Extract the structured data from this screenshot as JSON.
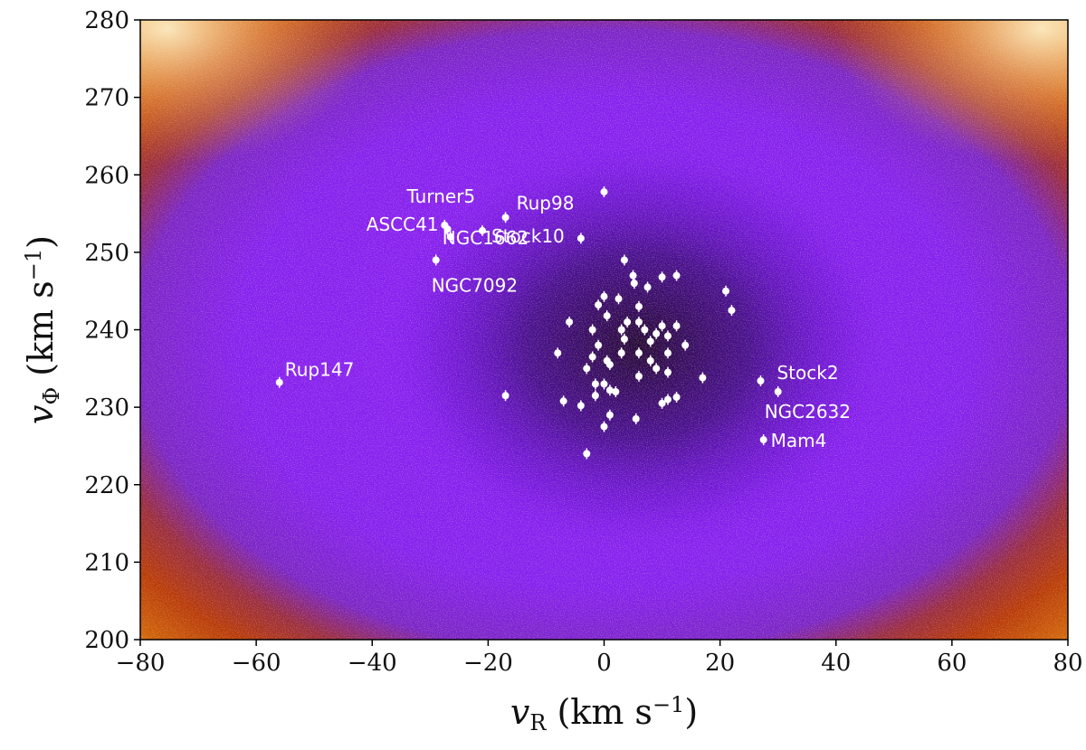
{
  "chart_data": {
    "type": "scatter",
    "xlabel": "v_R (km s^-1)",
    "ylabel": "v_Φ (km s^-1)",
    "xlim": [
      -80,
      80
    ],
    "ylim": [
      200,
      280
    ],
    "xticks": [
      -80,
      -60,
      -40,
      -20,
      0,
      20,
      40,
      60,
      80
    ],
    "yticks": [
      200,
      210,
      220,
      230,
      240,
      250,
      260,
      270,
      280
    ],
    "background": "2D density histogram of stellar velocities, dark purple at high density to orange/white at low density",
    "density_colors": [
      "#2a0a4a",
      "#6a10e0",
      "#8a1ef5",
      "#b03010",
      "#d05a00",
      "#f0a040",
      "#fff0c0"
    ],
    "point_color": "#ffffff",
    "labeled_clusters": [
      {
        "name": "Turner5",
        "x": -27.5,
        "y": 253.5
      },
      {
        "name": "Rup98",
        "x": -17.0,
        "y": 254.5
      },
      {
        "name": "ASCC41",
        "x": -27.0,
        "y": 253.0
      },
      {
        "name": "Stock10",
        "x": -21.0,
        "y": 252.8
      },
      {
        "name": "NGC1662",
        "x": -26.5,
        "y": 252.0
      },
      {
        "name": "NGC7092",
        "x": -29.0,
        "y": 249.0
      },
      {
        "name": "Rup147",
        "x": -56.0,
        "y": 233.2
      },
      {
        "name": "Stock2",
        "x": 27.0,
        "y": 233.4
      },
      {
        "name": "NGC2632",
        "x": 30.0,
        "y": 232.0
      },
      {
        "name": "Mam4",
        "x": 27.5,
        "y": 225.8
      }
    ],
    "other_clusters": [
      {
        "x": 0.0,
        "y": 257.8
      },
      {
        "x": -4.0,
        "y": 251.8
      },
      {
        "x": 3.5,
        "y": 249.0
      },
      {
        "x": 5.0,
        "y": 247.0
      },
      {
        "x": 10.0,
        "y": 246.8
      },
      {
        "x": 12.5,
        "y": 247.0
      },
      {
        "x": 5.2,
        "y": 246.0
      },
      {
        "x": 7.5,
        "y": 245.5
      },
      {
        "x": 21.0,
        "y": 245.0
      },
      {
        "x": 2.5,
        "y": 244.0
      },
      {
        "x": 0.0,
        "y": 244.3
      },
      {
        "x": -1.0,
        "y": 243.2
      },
      {
        "x": 0.5,
        "y": 241.8
      },
      {
        "x": 6.0,
        "y": 243.0
      },
      {
        "x": 22.0,
        "y": 242.5
      },
      {
        "x": -6.0,
        "y": 241.0
      },
      {
        "x": 4.0,
        "y": 241.0
      },
      {
        "x": 6.0,
        "y": 241.0
      },
      {
        "x": 10.0,
        "y": 240.5
      },
      {
        "x": 12.5,
        "y": 240.5
      },
      {
        "x": 3.0,
        "y": 240.0
      },
      {
        "x": 7.0,
        "y": 240.0
      },
      {
        "x": 9.0,
        "y": 239.5
      },
      {
        "x": 11.0,
        "y": 239.2
      },
      {
        "x": -2.0,
        "y": 240.0
      },
      {
        "x": 3.5,
        "y": 238.8
      },
      {
        "x": 8.0,
        "y": 238.5
      },
      {
        "x": -1.0,
        "y": 238.0
      },
      {
        "x": 14.0,
        "y": 238.0
      },
      {
        "x": -8.0,
        "y": 237.0
      },
      {
        "x": 3.0,
        "y": 237.0
      },
      {
        "x": 6.0,
        "y": 237.0
      },
      {
        "x": 11.0,
        "y": 237.0
      },
      {
        "x": -2.0,
        "y": 236.5
      },
      {
        "x": 0.5,
        "y": 236.0
      },
      {
        "x": 8.0,
        "y": 236.0
      },
      {
        "x": -3.0,
        "y": 235.0
      },
      {
        "x": 1.0,
        "y": 235.5
      },
      {
        "x": 9.0,
        "y": 235.0
      },
      {
        "x": 11.0,
        "y": 234.5
      },
      {
        "x": 6.0,
        "y": 234.0
      },
      {
        "x": 17.0,
        "y": 233.8
      },
      {
        "x": 0.0,
        "y": 233.0
      },
      {
        "x": -1.5,
        "y": 233.0
      },
      {
        "x": 1.0,
        "y": 232.2
      },
      {
        "x": 2.0,
        "y": 232.0
      },
      {
        "x": -1.5,
        "y": 231.5
      },
      {
        "x": -17.0,
        "y": 231.5
      },
      {
        "x": 12.5,
        "y": 231.3
      },
      {
        "x": 11.0,
        "y": 231.0
      },
      {
        "x": -7.0,
        "y": 230.8
      },
      {
        "x": 10.0,
        "y": 230.5
      },
      {
        "x": -4.0,
        "y": 230.2
      },
      {
        "x": 1.0,
        "y": 229.0
      },
      {
        "x": 5.5,
        "y": 228.5
      },
      {
        "x": 0.0,
        "y": 227.5
      },
      {
        "x": -3.0,
        "y": 224.0
      }
    ]
  }
}
